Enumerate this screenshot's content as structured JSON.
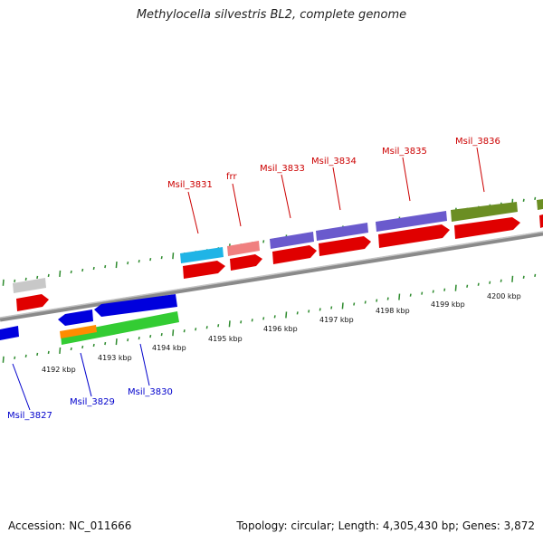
{
  "title": "Methylocella silvestris BL2, complete genome",
  "footer": {
    "accession": "Accession: NC_011666",
    "summary": "Topology: circular; Length: 4,305,430 bp; Genes: 3,872"
  },
  "colors": {
    "backbone": "#8a8a8a",
    "tick": "#2e8b2e",
    "label_forward": "#cc0000",
    "label_reverse": "#0000cc"
  },
  "chart_data": {
    "type": "diagram",
    "position_labels": [
      "4192 kbp",
      "4193 kbp",
      "4194 kbp",
      "4195 kbp",
      "4196 kbp",
      "4197 kbp",
      "4198 kbp",
      "4199 kbp",
      "4200 kbp"
    ],
    "gene_labels_forward": [
      "Msil_3831",
      "frr",
      "Msil_3833",
      "Msil_3834",
      "Msil_3835",
      "Msil_3836"
    ],
    "gene_labels_reverse": [
      "Msil_3827",
      "Msil_3829",
      "Msil_3830"
    ],
    "feature_colors": [
      "#1fb4e6",
      "#f08080",
      "#6a5acd",
      "#6b8e23",
      "#e00000",
      "#c8c8c8",
      "#0000dd",
      "#33cc33",
      "#ff8c00"
    ]
  }
}
